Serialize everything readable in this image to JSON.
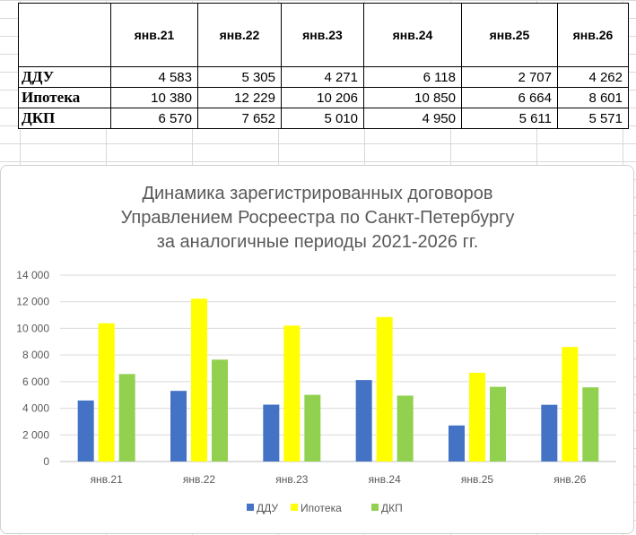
{
  "table": {
    "columns": [
      "янв.21",
      "янв.22",
      "янв.23",
      "янв.24",
      "янв.25",
      "янв.26"
    ],
    "rows": [
      {
        "label": "ДДУ",
        "values": [
          "4 583",
          "5 305",
          "4 271",
          "6 118",
          "2 707",
          "4 262"
        ]
      },
      {
        "label": "Ипотека",
        "values": [
          "10 380",
          "12 229",
          "10 206",
          "10 850",
          "6 664",
          "8 601"
        ]
      },
      {
        "label": "ДКП",
        "values": [
          "6 570",
          "7 652",
          "5 010",
          "4 950",
          "5 611",
          "5 571"
        ]
      }
    ]
  },
  "chart_data": {
    "type": "bar",
    "title": [
      "Динамика зарегистрированных договоров",
      "Управлением Росреестра по Санкт-Петербургу",
      "за аналогичные периоды 2021-2026 гг."
    ],
    "categories": [
      "янв.21",
      "янв.22",
      "янв.23",
      "янв.24",
      "янв.25",
      "янв.26"
    ],
    "series": [
      {
        "name": "ДДУ",
        "color": "#4472C4",
        "values": [
          4583,
          5305,
          4271,
          6118,
          2707,
          4262
        ]
      },
      {
        "name": "Ипотека",
        "color": "#FFFF00",
        "values": [
          10380,
          12229,
          10206,
          10850,
          6664,
          8601
        ]
      },
      {
        "name": "ДКП",
        "color": "#92D050",
        "values": [
          6570,
          7652,
          5010,
          4950,
          5611,
          5571
        ]
      }
    ],
    "ylim": [
      0,
      14000
    ],
    "yticks": [
      0,
      2000,
      4000,
      6000,
      8000,
      10000,
      12000,
      14000
    ],
    "ytick_labels": [
      "0",
      "2 000",
      "4 000",
      "6 000",
      "8 000",
      "10 000",
      "12 000",
      "14 000"
    ],
    "grid": true,
    "legend": "bottom",
    "xlabel": "",
    "ylabel": ""
  }
}
